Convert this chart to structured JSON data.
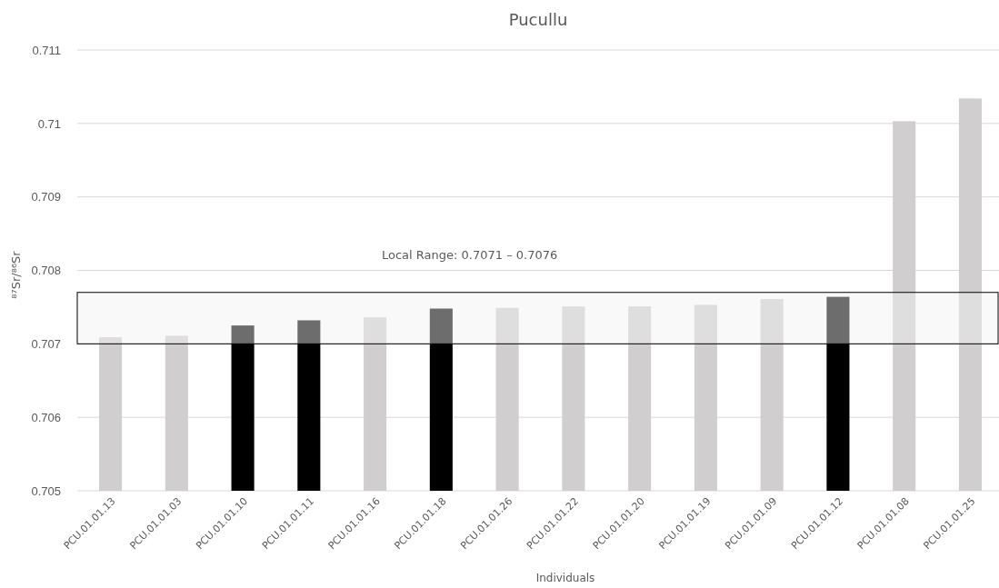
{
  "chart_data": {
    "type": "bar",
    "title": "Pucullu",
    "xlabel": "Individuals",
    "ylabel": "⁸⁷Sr/⁸⁶Sr",
    "categories": [
      "PCU.01.01.13",
      "PCU.01.01.03",
      "PCU.01.01.10",
      "PCU.01.01.11",
      "PCU.01.01.16",
      "PCU.01.01.18",
      "PCU.01.01.26",
      "PCU.01.01.22",
      "PCU.01.01.20",
      "PCU.01.01.19",
      "PCU.01.01.09",
      "PCU.01.01.12",
      "PCU.01.01.08",
      "PCU.01.01.25"
    ],
    "values": [
      0.70709,
      0.70711,
      0.70725,
      0.70732,
      0.70736,
      0.70748,
      0.70749,
      0.70751,
      0.70751,
      0.70753,
      0.70761,
      0.70764,
      0.71003,
      0.71034
    ],
    "colors": [
      "#d0cece",
      "#d0cece",
      "#000000",
      "#000000",
      "#d0cece",
      "#000000",
      "#d0cece",
      "#d0cece",
      "#d0cece",
      "#d0cece",
      "#d0cece",
      "#000000",
      "#d0cece",
      "#d0cece"
    ],
    "ylim": [
      0.705,
      0.711
    ],
    "yticks": [
      0.705,
      0.706,
      0.707,
      0.708,
      0.709,
      {
        "value": 0.71,
        "label": "0.71"
      },
      0.711
    ],
    "grid": "y",
    "bands": [
      {
        "axis": "y",
        "from": 0.707,
        "to": 0.7077,
        "label": "Local Range: 0.7071 – 0.7076",
        "color": "#f2f2f2"
      }
    ]
  }
}
